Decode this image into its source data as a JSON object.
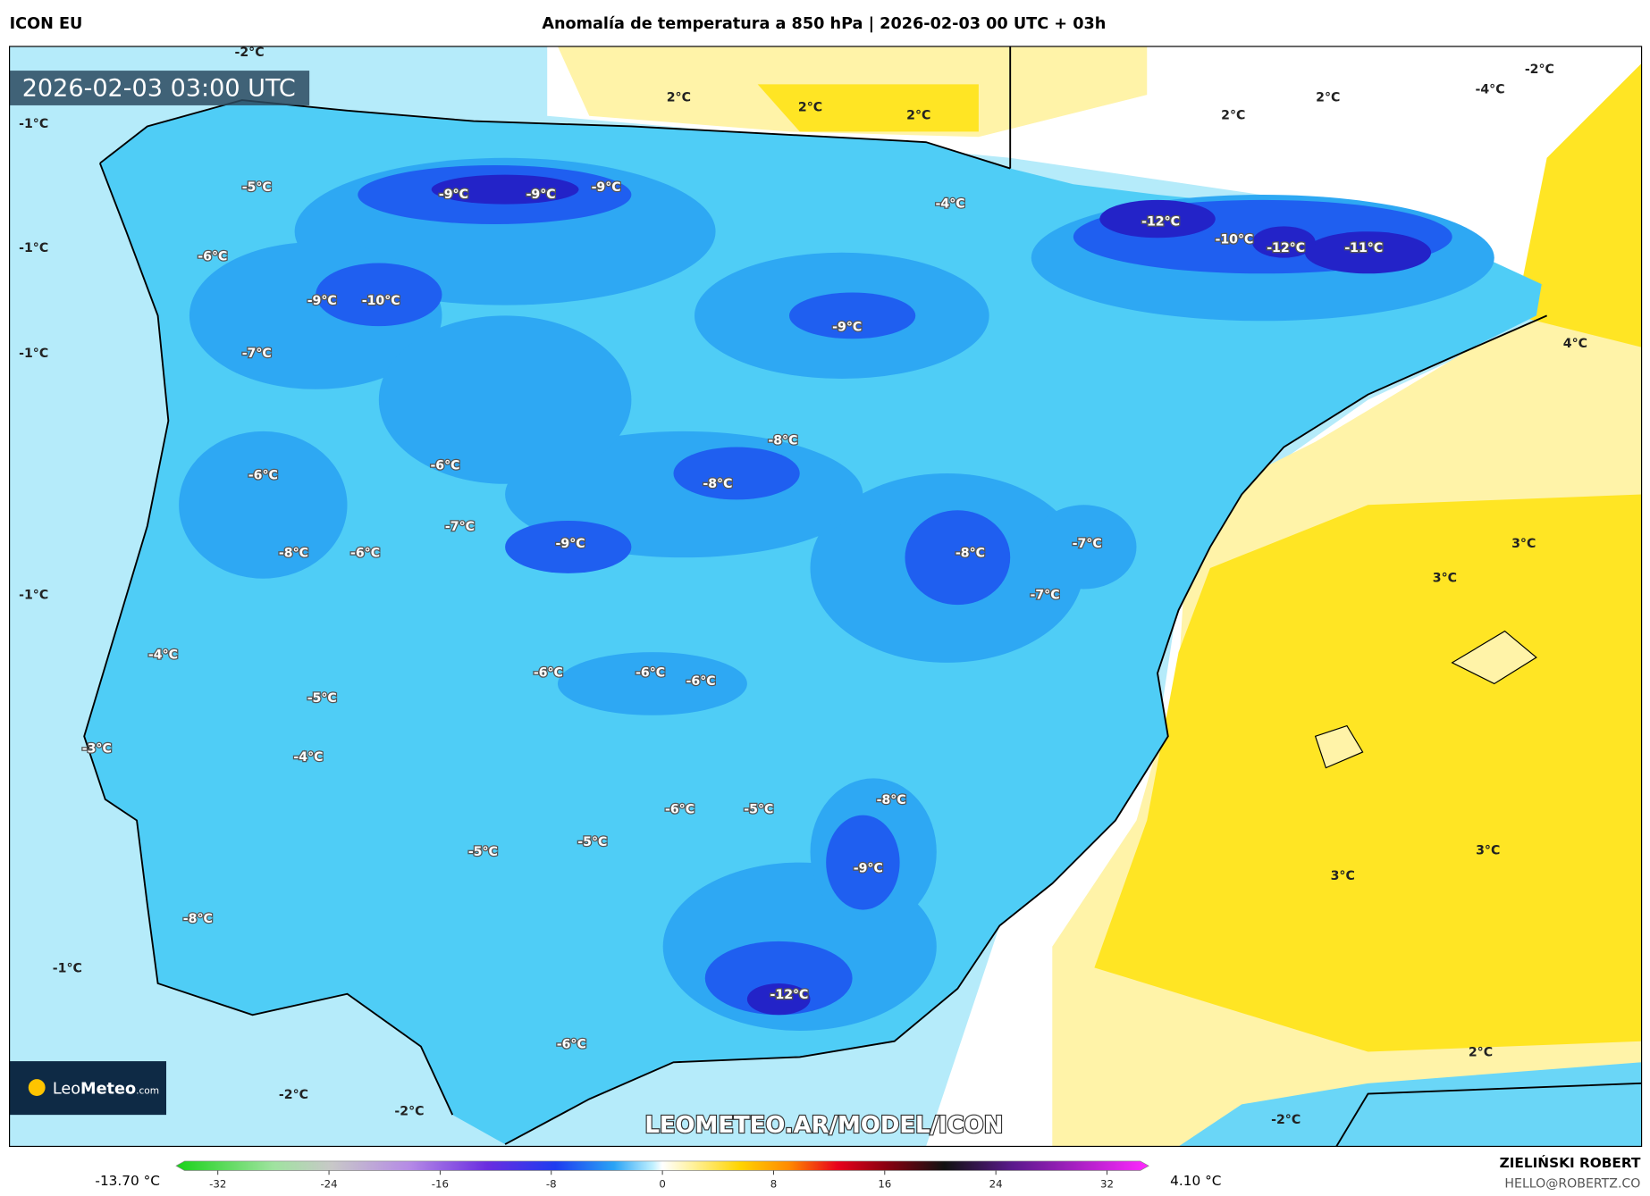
{
  "header": {
    "model": "ICON EU",
    "title": "Anomalía de temperatura a 850 hPa | 2026-02-03 00 UTC + 03h"
  },
  "map": {
    "valid_time": "2026-02-03 03:00 UTC",
    "watermark": "LEOMETEO.AR/MODEL/ICON",
    "logo": {
      "brand": "Leo",
      "brand_bold": "Meteo",
      "suffix": ".com"
    },
    "labels": [
      "-2°C",
      "-1°C",
      "-1°C",
      "-1°C",
      "-1°C",
      "-1°C",
      "-2°C",
      "-2°C",
      "-2°C",
      "2°C",
      "3°C",
      "3°C",
      "3°C",
      "3°C",
      "4°C",
      "-4°C",
      "-2°C",
      "2°C",
      "2°C",
      "2°C",
      "2°C",
      "2°C",
      "-5°C",
      "-6°C",
      "-9°C",
      "-10°C",
      "-7°C",
      "-9°C",
      "-9°C",
      "-9°C",
      "-4°C",
      "-12°C",
      "-10°C",
      "-12°C",
      "-11°C",
      "-9°C",
      "-8°C",
      "-8°C",
      "-6°C",
      "-6°C",
      "-7°C",
      "-9°C",
      "-8°C",
      "-6°C",
      "-8°C",
      "-7°C",
      "-7°C",
      "-4°C",
      "-6°C",
      "-6°C",
      "-6°C",
      "-5°C",
      "-3°C",
      "-4°C",
      "-6°C",
      "-5°C",
      "-8°C",
      "-5°C",
      "-5°C",
      "-9°C",
      "-8°C",
      "-12°C",
      "-6°C"
    ]
  },
  "colorbar": {
    "min_label": "-13.70 °C",
    "max_label": "4.10 °C",
    "lim": [
      -35,
      35
    ],
    "ticks": [
      -32,
      -24,
      -16,
      -8,
      0,
      8,
      16,
      24,
      32
    ]
  },
  "footer": {
    "author": "ZIELIŃSKI ROBERT",
    "email": "HELLO@ROBERTZ.CO"
  }
}
